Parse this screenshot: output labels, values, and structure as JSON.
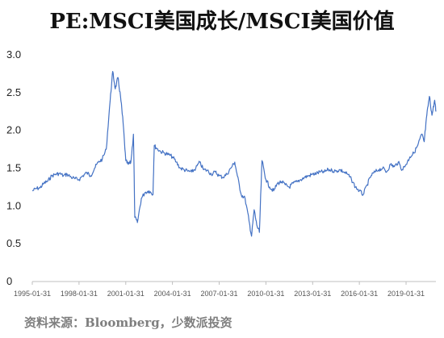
{
  "chart_data": {
    "type": "line",
    "title": "PE:MSCI美国成长/MSCI美国价值",
    "xlabel": "",
    "ylabel": "",
    "ylim": [
      0,
      3.0
    ],
    "xlim": [
      "1995-01-31",
      "2020-12-31"
    ],
    "grid": false,
    "legend": "none",
    "yticks": [
      "3.0",
      "2.5",
      "2.0",
      "1.5",
      "1.0",
      "0.5",
      "0"
    ],
    "xticks": [
      "1995-01-31",
      "1998-01-31",
      "2001-01-31",
      "2004-01-31",
      "2007-01-31",
      "2010-01-31",
      "2013-01-31",
      "2016-01-31",
      "2019-01-31"
    ],
    "series": [
      {
        "color": "#4472c4",
        "points": [
          [
            "1995-01-31",
            1.2
          ],
          [
            "1995-04-30",
            1.23
          ],
          [
            "1995-07-31",
            1.24
          ],
          [
            "1995-10-31",
            1.3
          ],
          [
            "1996-01-31",
            1.33
          ],
          [
            "1996-04-30",
            1.4
          ],
          [
            "1996-07-31",
            1.42
          ],
          [
            "1996-10-31",
            1.43
          ],
          [
            "1997-01-31",
            1.4
          ],
          [
            "1997-04-30",
            1.42
          ],
          [
            "1997-07-31",
            1.38
          ],
          [
            "1997-10-31",
            1.36
          ],
          [
            "1998-01-31",
            1.35
          ],
          [
            "1998-04-30",
            1.4
          ],
          [
            "1998-07-31",
            1.44
          ],
          [
            "1998-10-31",
            1.4
          ],
          [
            "1999-01-31",
            1.5
          ],
          [
            "1999-04-30",
            1.58
          ],
          [
            "1999-07-31",
            1.62
          ],
          [
            "1999-10-31",
            1.75
          ],
          [
            "2000-01-31",
            2.4
          ],
          [
            "2000-03-31",
            2.78
          ],
          [
            "2000-05-31",
            2.55
          ],
          [
            "2000-07-31",
            2.7
          ],
          [
            "2000-09-30",
            2.45
          ],
          [
            "2000-11-30",
            2.1
          ],
          [
            "2001-01-31",
            1.6
          ],
          [
            "2001-03-31",
            1.55
          ],
          [
            "2001-05-31",
            1.58
          ],
          [
            "2001-07-31",
            1.95
          ],
          [
            "2001-08-31",
            0.85
          ],
          [
            "2001-10-31",
            0.78
          ],
          [
            "2002-01-31",
            1.1
          ],
          [
            "2002-04-30",
            1.18
          ],
          [
            "2002-07-31",
            1.2
          ],
          [
            "2002-10-31",
            1.15
          ],
          [
            "2002-11-30",
            1.8
          ],
          [
            "2003-01-31",
            1.76
          ],
          [
            "2003-04-30",
            1.72
          ],
          [
            "2003-07-31",
            1.7
          ],
          [
            "2003-10-31",
            1.68
          ],
          [
            "2004-01-31",
            1.65
          ],
          [
            "2004-04-30",
            1.58
          ],
          [
            "2004-07-31",
            1.5
          ],
          [
            "2004-10-31",
            1.48
          ],
          [
            "2005-01-31",
            1.46
          ],
          [
            "2005-04-30",
            1.45
          ],
          [
            "2005-07-31",
            1.5
          ],
          [
            "2005-10-31",
            1.58
          ],
          [
            "2006-01-31",
            1.48
          ],
          [
            "2006-04-30",
            1.47
          ],
          [
            "2006-07-31",
            1.42
          ],
          [
            "2006-10-31",
            1.45
          ],
          [
            "2007-01-31",
            1.4
          ],
          [
            "2007-04-30",
            1.38
          ],
          [
            "2007-07-31",
            1.42
          ],
          [
            "2007-10-31",
            1.5
          ],
          [
            "2008-01-31",
            1.58
          ],
          [
            "2008-03-31",
            1.4
          ],
          [
            "2008-06-30",
            1.15
          ],
          [
            "2008-09-30",
            1.1
          ],
          [
            "2008-12-31",
            0.8
          ],
          [
            "2009-02-28",
            0.6
          ],
          [
            "2009-04-30",
            0.95
          ],
          [
            "2009-06-30",
            0.75
          ],
          [
            "2009-08-31",
            0.65
          ],
          [
            "2009-10-31",
            1.6
          ],
          [
            "2010-01-31",
            1.35
          ],
          [
            "2010-04-30",
            1.25
          ],
          [
            "2010-07-31",
            1.2
          ],
          [
            "2010-10-31",
            1.3
          ],
          [
            "2011-01-31",
            1.32
          ],
          [
            "2011-04-30",
            1.28
          ],
          [
            "2011-07-31",
            1.25
          ],
          [
            "2011-10-31",
            1.3
          ],
          [
            "2012-01-31",
            1.32
          ],
          [
            "2012-04-30",
            1.35
          ],
          [
            "2012-07-31",
            1.38
          ],
          [
            "2012-10-31",
            1.4
          ],
          [
            "2013-01-31",
            1.42
          ],
          [
            "2013-04-30",
            1.43
          ],
          [
            "2013-07-31",
            1.45
          ],
          [
            "2013-10-31",
            1.45
          ],
          [
            "2014-01-31",
            1.48
          ],
          [
            "2014-04-30",
            1.47
          ],
          [
            "2014-07-31",
            1.46
          ],
          [
            "2014-10-31",
            1.48
          ],
          [
            "2015-01-31",
            1.45
          ],
          [
            "2015-04-30",
            1.42
          ],
          [
            "2015-07-31",
            1.35
          ],
          [
            "2015-10-31",
            1.25
          ],
          [
            "2016-01-31",
            1.2
          ],
          [
            "2016-04-30",
            1.15
          ],
          [
            "2016-07-31",
            1.28
          ],
          [
            "2016-10-31",
            1.4
          ],
          [
            "2017-01-31",
            1.45
          ],
          [
            "2017-04-30",
            1.48
          ],
          [
            "2017-07-31",
            1.5
          ],
          [
            "2017-10-31",
            1.45
          ],
          [
            "2018-01-31",
            1.55
          ],
          [
            "2018-04-30",
            1.52
          ],
          [
            "2018-07-31",
            1.58
          ],
          [
            "2018-10-31",
            1.48
          ],
          [
            "2019-01-31",
            1.55
          ],
          [
            "2019-04-30",
            1.65
          ],
          [
            "2019-07-31",
            1.7
          ],
          [
            "2019-10-31",
            1.8
          ],
          [
            "2020-01-31",
            1.95
          ],
          [
            "2020-03-31",
            1.85
          ],
          [
            "2020-05-31",
            2.2
          ],
          [
            "2020-07-31",
            2.45
          ],
          [
            "2020-09-30",
            2.2
          ],
          [
            "2020-11-30",
            2.4
          ],
          [
            "2020-12-31",
            2.25
          ]
        ]
      }
    ]
  },
  "source": "资料来源：Bloomberg，少数派投资"
}
